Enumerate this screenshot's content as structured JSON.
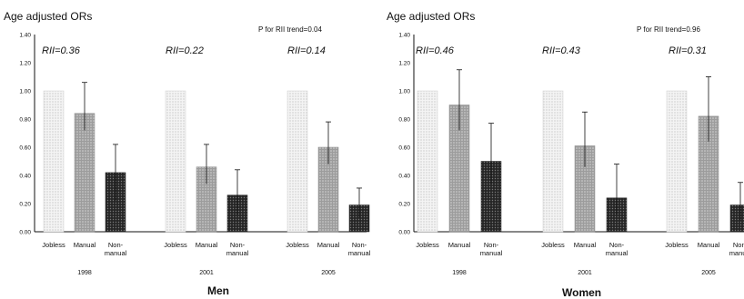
{
  "chart_data": [
    {
      "type": "bar",
      "panel": "Men",
      "ylabel": "Age adjusted ORs",
      "p_trend": "P for RII trend=0.04",
      "ylim": [
        0,
        1.4
      ],
      "yticks": [
        "0.00",
        "0.20",
        "0.40",
        "0.60",
        "0.80",
        "1.00",
        "1.20",
        "1.40"
      ],
      "categories": [
        "Jobless",
        "Manual",
        "Non-manual"
      ],
      "category_lines": [
        [
          "Jobless"
        ],
        [
          "Manual"
        ],
        [
          "Non-",
          "manual"
        ]
      ],
      "groups": [
        {
          "year": "1998",
          "rii": "RII=0.36",
          "values": [
            1.0,
            0.84,
            0.42
          ],
          "ci_low": [
            null,
            0.72,
            0.22
          ],
          "ci_high": [
            null,
            1.06,
            0.62
          ]
        },
        {
          "year": "2001",
          "rii": "RII=0.22",
          "values": [
            1.0,
            0.46,
            0.26
          ],
          "ci_low": [
            null,
            0.34,
            0.12
          ],
          "ci_high": [
            null,
            0.62,
            0.44
          ]
        },
        {
          "year": "2005",
          "rii": "RII=0.14",
          "values": [
            1.0,
            0.6,
            0.19
          ],
          "ci_low": [
            null,
            0.48,
            0.1
          ],
          "ci_high": [
            null,
            0.78,
            0.31
          ]
        }
      ]
    },
    {
      "type": "bar",
      "panel": "Women",
      "ylabel": "Age adjusted ORs",
      "p_trend": "P for RII trend=0.96",
      "ylim": [
        0,
        1.4
      ],
      "yticks": [
        "0.00",
        "0.20",
        "0.40",
        "0.60",
        "0.80",
        "1.00",
        "1.20",
        "1.40"
      ],
      "categories": [
        "Jobless",
        "Manual",
        "Non-manual"
      ],
      "category_lines": [
        [
          "Jobless"
        ],
        [
          "Manual"
        ],
        [
          "Non-",
          "manual"
        ]
      ],
      "groups": [
        {
          "year": "1998",
          "rii": "RII=0.46",
          "values": [
            1.0,
            0.9,
            0.5
          ],
          "ci_low": [
            null,
            0.72,
            0.34
          ],
          "ci_high": [
            null,
            1.15,
            0.77
          ]
        },
        {
          "year": "2001",
          "rii": "RII=0.43",
          "values": [
            1.0,
            0.61,
            0.24
          ],
          "ci_low": [
            null,
            0.46,
            0.12
          ],
          "ci_high": [
            null,
            0.85,
            0.48
          ]
        },
        {
          "year": "2005",
          "rii": "RII=0.31",
          "values": [
            1.0,
            0.82,
            0.19
          ],
          "ci_low": [
            null,
            0.64,
            0.08
          ],
          "ci_high": [
            null,
            1.1,
            0.35
          ]
        }
      ]
    }
  ],
  "colors": {
    "jobless": "#eeeeee",
    "manual": "#a8a8a8",
    "nonmanual": "#2e2e2e",
    "axis": "#111111"
  }
}
